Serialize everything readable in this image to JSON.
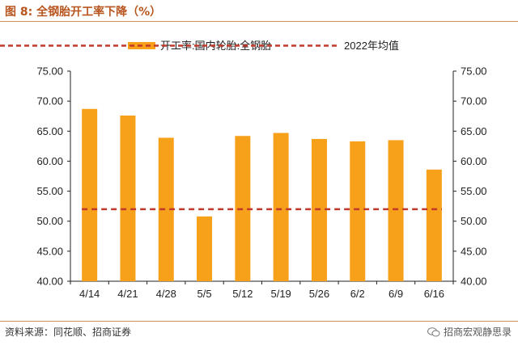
{
  "header": {
    "title": "图 8:  全钢胎开工率下降（%）"
  },
  "footer": {
    "source": "资料来源：同花顺、招商证券",
    "watermark": "招商宏观静思录"
  },
  "colors": {
    "bar": "#f7a11a",
    "avg_line": "#c0392b",
    "accent": "#b8551f"
  },
  "chart_data": {
    "type": "bar",
    "categories": [
      "4/14",
      "4/21",
      "4/28",
      "5/5",
      "5/12",
      "5/19",
      "5/26",
      "6/2",
      "6/9",
      "6/16"
    ],
    "series": [
      {
        "name": "开工率:国内轮胎:全钢胎",
        "type": "bar",
        "values": [
          68.7,
          67.6,
          63.9,
          50.8,
          64.2,
          64.7,
          63.7,
          63.3,
          63.5,
          58.6
        ]
      },
      {
        "name": "2022年均值",
        "type": "line-dashed",
        "values": [
          52.0,
          52.0,
          52.0,
          52.0,
          52.0,
          52.0,
          52.0,
          52.0,
          52.0,
          52.0
        ]
      }
    ],
    "yticks": [
      "40.00",
      "45.00",
      "50.00",
      "55.00",
      "60.00",
      "65.00",
      "70.00",
      "75.00"
    ],
    "ylim": [
      40,
      75
    ],
    "legend_position": "top",
    "grid": false
  }
}
